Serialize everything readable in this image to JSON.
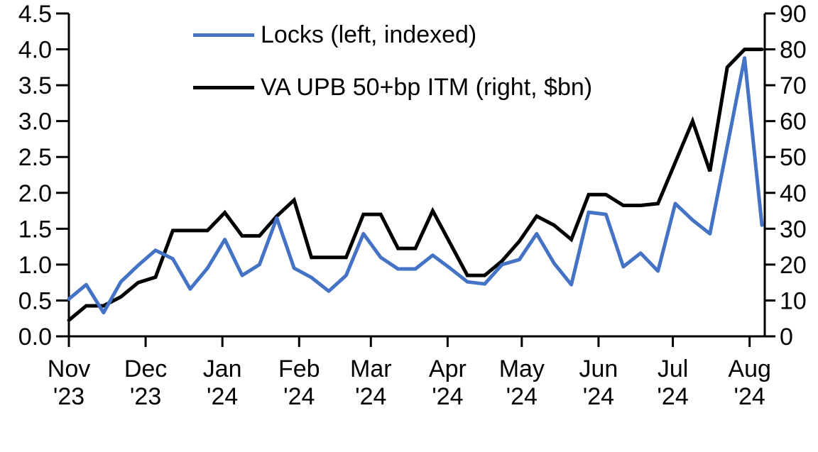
{
  "chart_data": {
    "type": "line",
    "title": "",
    "frequency": "weekly",
    "x_range": "Nov 2023 - Aug 2024",
    "background": "#ffffff",
    "axis_color": "#000000",
    "legend_position": "top-center",
    "grid": "off",
    "left_axis": {
      "min": 0,
      "max": 4.5,
      "step": 0.5,
      "ticks": [
        "0.0",
        "0.5",
        "1.0",
        "1.5",
        "2.0",
        "2.5",
        "3.0",
        "3.5",
        "4.0",
        "4.5"
      ]
    },
    "right_axis": {
      "min": 0,
      "max": 90,
      "step": 10,
      "ticks": [
        "0",
        "10",
        "20",
        "30",
        "40",
        "50",
        "60",
        "70",
        "80",
        "90"
      ]
    },
    "x_axis": {
      "total_weeks": 40,
      "months": [
        {
          "label": "Nov",
          "year": "'23",
          "week": 0
        },
        {
          "label": "Dec",
          "year": "'23",
          "week": 4.43
        },
        {
          "label": "Jan",
          "year": "'24",
          "week": 8.86
        },
        {
          "label": "Feb",
          "year": "'24",
          "week": 13.29
        },
        {
          "label": "Mar",
          "year": "'24",
          "week": 17.43
        },
        {
          "label": "Apr",
          "year": "'24",
          "week": 21.86
        },
        {
          "label": "May",
          "year": "'24",
          "week": 26.14
        },
        {
          "label": "Jun",
          "year": "'24",
          "week": 30.57
        },
        {
          "label": "Jul",
          "year": "'24",
          "week": 34.86
        },
        {
          "label": "Aug",
          "year": "'24",
          "week": 39.29
        }
      ]
    },
    "series": [
      {
        "name": "Locks (left, indexed)",
        "axis": "left",
        "color": "#4472C4",
        "values": [
          0.52,
          0.72,
          0.33,
          0.76,
          0.99,
          1.2,
          1.08,
          0.66,
          0.95,
          1.35,
          0.85,
          1.0,
          1.65,
          0.95,
          0.82,
          0.63,
          0.85,
          1.43,
          1.1,
          0.94,
          0.94,
          1.13,
          0.95,
          0.76,
          0.73,
          1.0,
          1.07,
          1.43,
          1.02,
          0.72,
          1.73,
          1.7,
          0.97,
          1.16,
          0.91,
          1.85,
          1.62,
          1.43,
          2.65,
          3.88,
          1.55
        ]
      },
      {
        "name": "VA UPB 50+bp ITM (right, $bn)",
        "axis": "right",
        "color": "#000000",
        "values": [
          4.5,
          8.5,
          8.5,
          11,
          15,
          16.5,
          29.5,
          29.5,
          29.5,
          34.5,
          28,
          28,
          33.5,
          38,
          22,
          22,
          22,
          34,
          34,
          24.5,
          24.5,
          35,
          26,
          17,
          17,
          21,
          26.5,
          33.5,
          31,
          27,
          39.5,
          39.5,
          36.5,
          36.5,
          37,
          48.5,
          60,
          46,
          75,
          80,
          80
        ]
      }
    ]
  }
}
